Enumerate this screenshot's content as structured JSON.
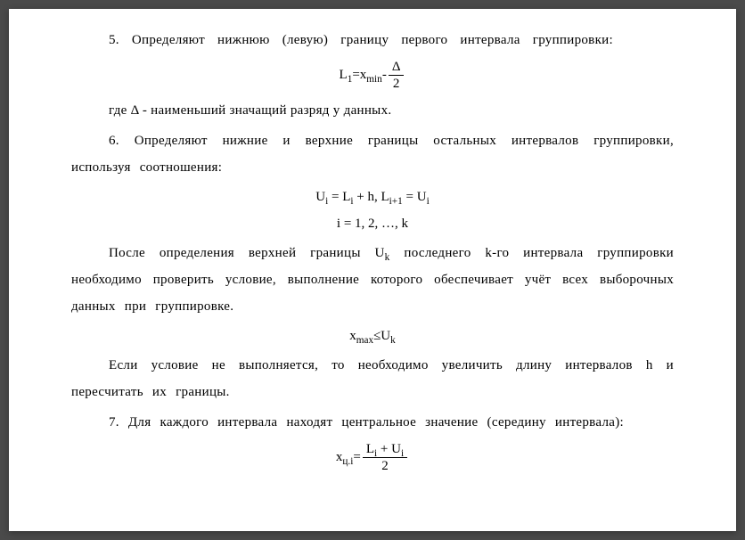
{
  "para1": "5. Определяют нижнюю (левую) границу первого  интервала группировки:",
  "formula1_left": "L",
  "formula1_sub1": "1",
  "formula1_eq": "=x",
  "formula1_sub2": "min",
  "formula1_minus": "-",
  "formula1_num": "Δ",
  "formula1_den": "2",
  "para2_pre": "где ",
  "para2_delta": "Δ",
  "para2_post": " - наименьший значащий разряд у данных.",
  "para3": "6. Определяют нижние и верхние границы остальных интервалов группировки, используя соотношения:",
  "formula2": "U",
  "formula2_sub1": "i",
  "formula2_mid": " = L",
  "formula2_sub2": "i",
  "formula2_mid2": " + h,   L",
  "formula2_sub3": "i+1",
  "formula2_mid3": " = U",
  "formula2_sub4": "i",
  "formula3": "i = 1, 2, …, k",
  "para4_pre": "После определения верхней границы U",
  "para4_sub1": "k",
  "para4_post": " последнего k-го интервала группировки необходимо  проверить  условие,  выполнение  которого obеспечивает  учёт  всех  выборочных данных при группировке.",
  "para4_full": "После определения верхней границы U",
  "para4_after": " последнего k-го интервала группировки необходимо   проверить   условие,   выполнение   которого обеспечивает  учёт  всех  выборочных данных при группировке.",
  "formula4_left": "x",
  "formula4_sub1": "max",
  "formula4_mid": "≤U",
  "formula4_sub2": "k",
  "para5": "Если условие не выполняется, то необходимо увеличить длину интервалов h и пересчитать их границы.",
  "para6": "7. Для каждого интервала находят центральное значение (середину интервала):",
  "formula5_left": "x",
  "formula5_sub1": "ц.i",
  "formula5_eq": "=",
  "formula5_num_l": "L",
  "formula5_num_sub1": "i",
  "formula5_num_mid": " + U",
  "formula5_num_sub2": "i",
  "formula5_den": "2",
  "colors": {
    "background": "#4a4a4a",
    "page": "#ffffff",
    "text": "#000000"
  },
  "typography": {
    "font_family": "Times New Roman",
    "body_fontsize": 15,
    "line_height": 2
  }
}
